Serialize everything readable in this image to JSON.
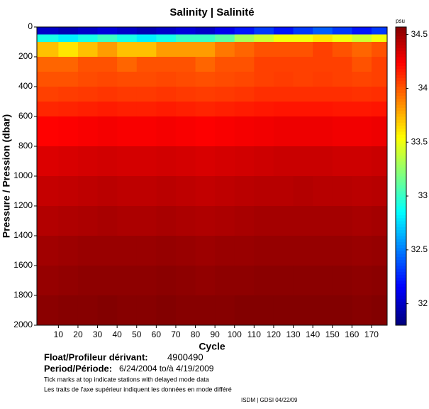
{
  "chart_data": {
    "type": "heatmap",
    "title": "Salinity | Salinité",
    "xlabel": "Cycle",
    "ylabel": "Pressure / Pression (dbar)",
    "colorbar_label": "psu",
    "xlim": [
      -1,
      178
    ],
    "xticks": [
      10,
      20,
      30,
      40,
      50,
      60,
      70,
      80,
      90,
      100,
      110,
      120,
      130,
      140,
      150,
      160,
      170
    ],
    "ylim": [
      2000,
      0
    ],
    "yticks": [
      0,
      200,
      400,
      600,
      800,
      1000,
      1200,
      1400,
      1600,
      1800,
      2000
    ],
    "zlim": [
      31.8,
      34.57
    ],
    "zticks": [
      32,
      32.5,
      33,
      33.5,
      34,
      34.5
    ],
    "x_edges": [
      -1,
      10,
      20,
      30,
      40,
      50,
      60,
      70,
      80,
      90,
      100,
      110,
      120,
      130,
      140,
      150,
      160,
      170,
      178
    ],
    "y_edges": [
      0,
      50,
      100,
      200,
      300,
      400,
      500,
      600,
      800,
      1000,
      1200,
      1400,
      1600,
      1800,
      2000
    ],
    "z": [
      [
        32.0,
        31.95,
        32.0,
        32.05,
        32.0,
        31.95,
        32.0,
        32.05,
        32.0,
        32.1,
        32.2,
        32.3,
        32.2,
        32.3,
        32.4,
        32.3,
        32.2,
        32.3
      ],
      [
        32.9,
        32.8,
        32.9,
        33.0,
        32.9,
        32.8,
        32.9,
        33.0,
        33.0,
        33.1,
        33.3,
        33.4,
        33.5,
        33.5,
        33.6,
        33.5,
        33.4,
        33.5
      ],
      [
        33.7,
        33.6,
        33.7,
        33.8,
        33.7,
        33.7,
        33.8,
        33.8,
        33.8,
        33.9,
        33.95,
        34.0,
        34.0,
        34.0,
        34.05,
        34.0,
        33.95,
        34.0
      ],
      [
        33.95,
        33.95,
        34.0,
        34.0,
        33.95,
        34.0,
        34.0,
        34.0,
        33.95,
        34.0,
        34.0,
        34.05,
        34.05,
        34.05,
        34.05,
        34.05,
        34.0,
        34.05
      ],
      [
        34.0,
        34.0,
        34.02,
        34.03,
        34.02,
        34.02,
        34.03,
        34.02,
        34.01,
        34.02,
        34.03,
        34.05,
        34.06,
        34.05,
        34.06,
        34.05,
        34.04,
        34.05
      ],
      [
        34.05,
        34.06,
        34.07,
        34.08,
        34.07,
        34.07,
        34.08,
        34.07,
        34.06,
        34.07,
        34.08,
        34.1,
        34.1,
        34.1,
        34.1,
        34.1,
        34.09,
        34.1
      ],
      [
        34.12,
        34.13,
        34.14,
        34.15,
        34.14,
        34.14,
        34.15,
        34.14,
        34.13,
        34.14,
        34.15,
        34.16,
        34.17,
        34.17,
        34.17,
        34.16,
        34.16,
        34.17
      ],
      [
        34.22,
        34.23,
        34.24,
        34.25,
        34.24,
        34.24,
        34.25,
        34.24,
        34.23,
        34.24,
        34.25,
        34.26,
        34.27,
        34.27,
        34.27,
        34.26,
        34.26,
        34.27
      ],
      [
        34.32,
        34.33,
        34.34,
        34.35,
        34.34,
        34.34,
        34.35,
        34.34,
        34.33,
        34.34,
        34.35,
        34.36,
        34.37,
        34.37,
        34.37,
        34.36,
        34.36,
        34.37
      ],
      [
        34.38,
        34.39,
        34.4,
        34.41,
        34.4,
        34.4,
        34.41,
        34.4,
        34.39,
        34.4,
        34.41,
        34.42,
        34.42,
        34.43,
        34.42,
        34.42,
        34.41,
        34.42
      ],
      [
        34.43,
        34.44,
        34.45,
        34.46,
        34.45,
        34.45,
        34.46,
        34.45,
        34.44,
        34.45,
        34.46,
        34.47,
        34.47,
        34.47,
        34.47,
        34.47,
        34.46,
        34.47
      ],
      [
        34.48,
        34.49,
        34.5,
        34.5,
        34.5,
        34.5,
        34.51,
        34.5,
        34.49,
        34.5,
        34.5,
        34.51,
        34.51,
        34.51,
        34.51,
        34.51,
        34.5,
        34.51
      ],
      [
        34.51,
        34.52,
        34.53,
        34.53,
        34.53,
        34.53,
        34.54,
        34.53,
        34.52,
        34.53,
        34.53,
        34.54,
        34.54,
        34.54,
        34.54,
        34.54,
        34.53,
        34.54
      ],
      [
        34.54,
        34.55,
        34.55,
        34.56,
        34.55,
        34.55,
        34.56,
        34.55,
        34.55,
        34.55,
        34.56,
        34.56,
        34.56,
        34.56,
        34.56,
        34.56,
        34.55,
        34.56
      ]
    ]
  },
  "footer": {
    "float_label": "Float/Profileur dérivant:",
    "float_id": "4900490",
    "period_label": "Period/Période:",
    "period": "6/24/2004  to/à  4/19/2009",
    "note_en": "Tick marks at top indicate stations with delayed mode data",
    "note_fr": "Les traits de l'axe supérieur indiquent les données en mode différé",
    "credit": "ISDM | GDSI  04/22/09"
  }
}
